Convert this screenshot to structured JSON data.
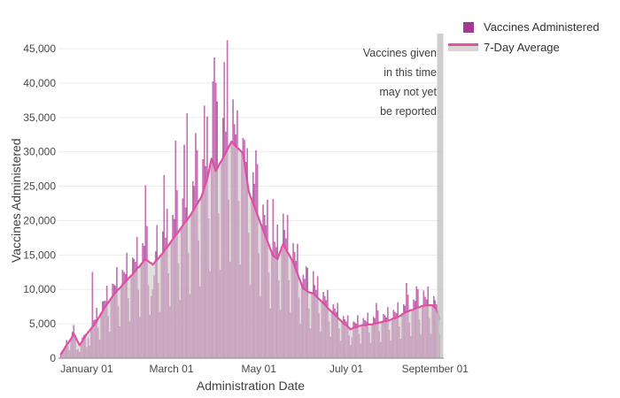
{
  "annotation": {
    "lines": [
      "Vaccines given",
      "in this time",
      "may not yet",
      "be reported"
    ]
  },
  "chart_data": {
    "type": "bar",
    "title": "",
    "xlabel": "Administration Date",
    "ylabel": "Vaccines Administered",
    "date_range": {
      "start": "2020-12-14",
      "end": "2021-09-04"
    },
    "grid": true,
    "legend_position": "top-right",
    "y_scale_max": 45000,
    "y_tick_values": [
      0,
      5000,
      10000,
      15000,
      20000,
      25000,
      30000,
      35000,
      40000,
      45000
    ],
    "y_tick_labels": [
      "0",
      "5,000",
      "10,000",
      "15,000",
      "20,000",
      "25,000",
      "30,000",
      "35,000",
      "40,000",
      "45,000"
    ],
    "x_ticks": [
      {
        "label": "January 01",
        "day_index": 18
      },
      {
        "label": "March 01",
        "day_index": 77
      },
      {
        "label": "May 01",
        "day_index": 138
      },
      {
        "label": "July 01",
        "day_index": 199
      },
      {
        "label": "September 01",
        "day_index": 261
      }
    ],
    "colors": {
      "bar_fill": "#cd7fbd",
      "bar_stroke": "#ab3a96",
      "line": "#df4fa4",
      "area": "#cecbc9",
      "grid": "#ebebeb",
      "axis": "#999999",
      "band": "#c2c2c2",
      "legend_square": "#a53a92"
    },
    "unreported_window_days": 2,
    "series": [
      {
        "name": "Vaccines Administered",
        "type": "bar",
        "values": [
          600,
          1100,
          1400,
          1800,
          2600,
          1700,
          1100,
          2800,
          3800,
          4800,
          3400,
          1200,
          1300,
          900,
          2200,
          3000,
          3300,
          3500,
          1600,
          2900,
          1800,
          4300,
          12500,
          5500,
          5600,
          7300,
          4400,
          2700,
          6500,
          8200,
          8300,
          8300,
          10500,
          6100,
          3800,
          8700,
          10800,
          10700,
          10500,
          13200,
          7500,
          4600,
          10400,
          12800,
          12500,
          12200,
          15300,
          8700,
          5300,
          12000,
          14600,
          14400,
          14000,
          17600,
          9900,
          6000,
          13700,
          16700,
          16300,
          25100,
          19200,
          10600,
          6300,
          9000,
          10000,
          12000,
          15500,
          19300,
          10900,
          6700,
          15000,
          18400,
          26600,
          17500,
          21700,
          12300,
          7500,
          17000,
          20800,
          20200,
          31600,
          24400,
          13800,
          8400,
          19000,
          23200,
          31000,
          21900,
          35600,
          15300,
          9300,
          21000,
          25700,
          25000,
          32700,
          30200,
          17100,
          10400,
          23500,
          28900,
          36700,
          27900,
          35100,
          20300,
          12600,
          29000,
          40200,
          43700,
          40000,
          37300,
          21000,
          12800,
          28700,
          34900,
          43000,
          32900,
          46200,
          23000,
          14000,
          31500,
          37600,
          34000,
          32500,
          36000,
          22800,
          13600,
          30000,
          32000,
          31700,
          28500,
          30500,
          18200,
          10600,
          23100,
          27000,
          25300,
          30200,
          28200,
          15200,
          8900,
          19200,
          22300,
          20800,
          19300,
          23000,
          12400,
          7200,
          15400,
          23100,
          16900,
          16100,
          19400,
          11300,
          7000,
          16100,
          21000,
          18600,
          17400,
          20800,
          11300,
          6600,
          14300,
          16700,
          15400,
          14100,
          16600,
          8800,
          5000,
          10600,
          12100,
          11500,
          13300,
          13100,
          7200,
          4300,
          9500,
          12600,
          10600,
          9900,
          11900,
          6500,
          3800,
          8200,
          9600,
          9000,
          8400,
          9900,
          5300,
          3100,
          6700,
          7800,
          7200,
          6700,
          8000,
          4300,
          2500,
          5300,
          6100,
          5600,
          5300,
          6200,
          3300,
          1900,
          3000,
          5300,
          5200,
          5000,
          6200,
          3500,
          2100,
          4800,
          5800,
          5500,
          5300,
          6600,
          3700,
          2200,
          4900,
          6000,
          5800,
          8000,
          6900,
          3900,
          2300,
          5300,
          6400,
          6200,
          5900,
          7400,
          4100,
          2500,
          5700,
          7000,
          6700,
          6500,
          8100,
          4600,
          2800,
          6400,
          7800,
          7600,
          10900,
          9200,
          5200,
          3200,
          7000,
          8500,
          8300,
          10400,
          10000,
          5600,
          3400,
          7600,
          9800,
          8900,
          8500,
          10400,
          5800,
          3500,
          7700,
          9000,
          8400,
          7800,
          7000,
          3500
        ]
      },
      {
        "name": "7-Day Average",
        "type": "line",
        "values": [
          600,
          900,
          1200,
          1600,
          1900,
          2200,
          2500,
          2800,
          3200,
          3500,
          3100,
          2700,
          2300,
          1900,
          2200,
          2500,
          2900,
          3200,
          3500,
          3800,
          4000,
          4300,
          4600,
          4800,
          5100,
          5400,
          5800,
          6100,
          6500,
          6800,
          7200,
          7500,
          7800,
          8100,
          8400,
          8700,
          9000,
          9300,
          9500,
          9800,
          10000,
          10200,
          10400,
          10700,
          10900,
          11100,
          11300,
          11600,
          11800,
          12000,
          12200,
          12500,
          12700,
          13000,
          13200,
          13400,
          13700,
          13900,
          14200,
          14400,
          14200,
          14100,
          13900,
          13800,
          13600,
          13800,
          14100,
          14300,
          14500,
          14800,
          15000,
          15300,
          15600,
          15900,
          16100,
          16400,
          16700,
          17000,
          17300,
          17600,
          17900,
          18100,
          18400,
          18700,
          19000,
          19300,
          19600,
          19900,
          20100,
          20400,
          20700,
          21000,
          21400,
          21700,
          22100,
          22400,
          22800,
          23100,
          23500,
          24100,
          24800,
          25400,
          26000,
          27000,
          28000,
          29000,
          28400,
          27800,
          27200,
          27600,
          28000,
          28400,
          28700,
          29100,
          29500,
          29900,
          30300,
          30700,
          31100,
          31500,
          31300,
          31000,
          30800,
          30600,
          30400,
          30200,
          30000,
          29800,
          28400,
          27000,
          25600,
          24200,
          23600,
          23100,
          22500,
          22000,
          21400,
          20900,
          20300,
          19700,
          19200,
          18600,
          18100,
          17500,
          17000,
          16500,
          15900,
          15400,
          14900,
          14700,
          14600,
          14400,
          15000,
          15500,
          16100,
          16600,
          16200,
          15800,
          15400,
          15100,
          14700,
          14300,
          13900,
          13400,
          12800,
          12300,
          11700,
          11200,
          10600,
          10100,
          10000,
          9900,
          9700,
          9600,
          9500,
          9500,
          9400,
          9200,
          9000,
          8800,
          8600,
          8400,
          8200,
          8000,
          7800,
          7600,
          7300,
          7100,
          6900,
          6700,
          6500,
          6300,
          6100,
          5900,
          5700,
          5500,
          5300,
          5100,
          4900,
          4800,
          4600,
          4400,
          4200,
          4300,
          4400,
          4500,
          4500,
          4600,
          4700,
          4700,
          4800,
          4800,
          4800,
          4800,
          4900,
          4900,
          4900,
          4900,
          5000,
          5000,
          5100,
          5100,
          5200,
          5200,
          5300,
          5300,
          5400,
          5400,
          5500,
          5500,
          5600,
          5700,
          5800,
          5800,
          5900,
          6000,
          6100,
          6200,
          6400,
          6500,
          6600,
          6700,
          6800,
          6900,
          7000,
          7000,
          7100,
          7200,
          7300,
          7400,
          7400,
          7500,
          7600,
          7600,
          7700,
          7700,
          7700,
          7700,
          7700,
          7700,
          7500,
          7300,
          7100,
          6400,
          5700
        ]
      }
    ]
  }
}
